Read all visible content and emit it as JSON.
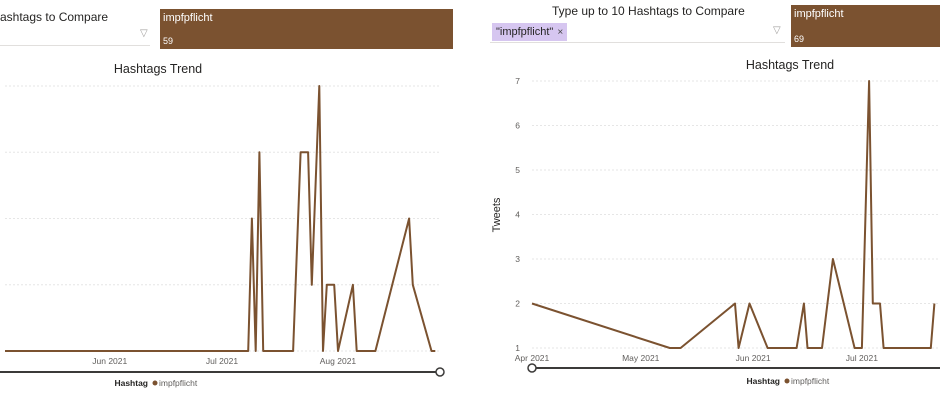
{
  "left": {
    "slicer_title": "ashtags to Compare",
    "card": {
      "name": "impfpflicht",
      "value": "59"
    },
    "chart": {
      "title": "Hashtags Trend",
      "x_ticks": [
        "Jun 2021",
        "Jul 2021",
        "Aug 2021"
      ],
      "legend_label": "Hashtag",
      "legend_series": "impfpflicht"
    }
  },
  "right": {
    "slicer_title": "Type up to 10 Hashtags to Compare",
    "chip": {
      "label": "\"impfpflicht\"",
      "remove": "×"
    },
    "card": {
      "name": "impfpflicht",
      "value": "69"
    },
    "chart": {
      "title": "Hashtags Trend",
      "y_label": "Tweets",
      "x_ticks": [
        "Apr 2021",
        "May 2021",
        "Jun 2021",
        "Jul 2021"
      ],
      "y_ticks": [
        "1",
        "2",
        "3",
        "4",
        "5",
        "6",
        "7"
      ],
      "legend_label": "Hashtag",
      "legend_series": "impfpflicht"
    }
  },
  "colors": {
    "series": "#7b5230",
    "card_bg": "#7b5230",
    "chip_bg": "#d6c6f0",
    "grid": "#e6e6e6"
  },
  "icons": {
    "dropdown": "chevron-down-icon",
    "remove": "close-icon"
  },
  "chart_data": [
    {
      "type": "line",
      "title": "Hashtags Trend",
      "xlabel": "",
      "ylabel": "",
      "x_range": [
        "2021-05-04",
        "2021-08-28"
      ],
      "ylim": [
        1,
        5
      ],
      "grid": true,
      "legend": "bottom-center",
      "series": [
        {
          "name": "impfpflicht",
          "x": [
            "2021-05-04",
            "2021-07-08",
            "2021-07-09",
            "2021-07-10",
            "2021-07-11",
            "2021-07-12",
            "2021-07-20",
            "2021-07-22",
            "2021-07-24",
            "2021-07-25",
            "2021-07-27",
            "2021-07-28",
            "2021-07-29",
            "2021-07-31",
            "2021-08-01",
            "2021-08-05",
            "2021-08-06",
            "2021-08-07",
            "2021-08-11",
            "2021-08-20",
            "2021-08-21",
            "2021-08-26",
            "2021-08-27"
          ],
          "values": [
            1,
            1,
            3,
            1,
            4,
            1,
            1,
            4,
            4,
            2,
            5,
            1,
            2,
            2,
            1,
            2,
            1,
            1,
            1,
            3,
            2,
            1,
            1
          ]
        }
      ]
    },
    {
      "type": "line",
      "title": "Hashtags Trend",
      "xlabel": "",
      "ylabel": "Tweets",
      "x_range": [
        "2021-04-01",
        "2021-07-22"
      ],
      "ylim": [
        1,
        7
      ],
      "grid": true,
      "legend": "bottom-center",
      "series": [
        {
          "name": "impfpflicht",
          "x": [
            "2021-04-01",
            "2021-05-09",
            "2021-05-12",
            "2021-05-27",
            "2021-05-28",
            "2021-05-31",
            "2021-06-05",
            "2021-06-10",
            "2021-06-13",
            "2021-06-15",
            "2021-06-16",
            "2021-06-20",
            "2021-06-23",
            "2021-06-29",
            "2021-06-30",
            "2021-07-01",
            "2021-07-03",
            "2021-07-04",
            "2021-07-05",
            "2021-07-06",
            "2021-07-07",
            "2021-07-08",
            "2021-07-09",
            "2021-07-10",
            "2021-07-12",
            "2021-07-15",
            "2021-07-18",
            "2021-07-20",
            "2021-07-21"
          ],
          "values": [
            2,
            1,
            1,
            2,
            1,
            2,
            1,
            1,
            1,
            2,
            1,
            1,
            3,
            1,
            1,
            1,
            7,
            2,
            2,
            2,
            1,
            1,
            1,
            1,
            1,
            1,
            1,
            1,
            2
          ]
        }
      ]
    }
  ]
}
